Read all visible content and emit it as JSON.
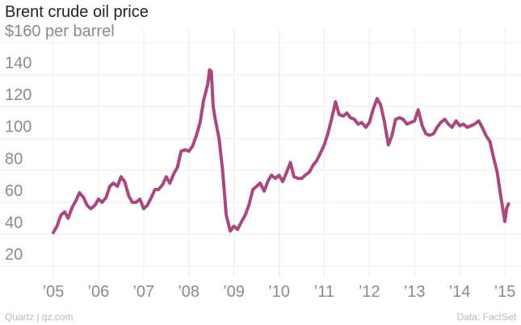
{
  "title": "Brent crude oil price",
  "footer": {
    "source_left": "Quartz | qz.com",
    "source_right": "Data: FactSet"
  },
  "colors": {
    "line": "#a8487f",
    "grid": "#ececec",
    "tick_text": "#8a8a8a"
  },
  "chart_data": {
    "type": "line",
    "title": "Brent crude oil price",
    "xlabel": "",
    "ylabel": "",
    "xlim": [
      2005,
      2015.3
    ],
    "ylim": [
      20,
      160
    ],
    "grid": true,
    "y_ticks": [
      {
        "value": 160,
        "label": "$160 per barrel"
      },
      {
        "value": 140,
        "label": "140"
      },
      {
        "value": 120,
        "label": "120"
      },
      {
        "value": 100,
        "label": "100"
      },
      {
        "value": 80,
        "label": "80"
      },
      {
        "value": 60,
        "label": "60"
      },
      {
        "value": 40,
        "label": "40"
      },
      {
        "value": 20,
        "label": "20"
      }
    ],
    "x_ticks": [
      {
        "value": 2005,
        "label": "’05"
      },
      {
        "value": 2006,
        "label": "’06"
      },
      {
        "value": 2007,
        "label": "’07"
      },
      {
        "value": 2008,
        "label": "’08"
      },
      {
        "value": 2009,
        "label": "’09"
      },
      {
        "value": 2010,
        "label": "’10"
      },
      {
        "value": 2011,
        "label": "’11"
      },
      {
        "value": 2012,
        "label": "’12"
      },
      {
        "value": 2013,
        "label": "’13"
      },
      {
        "value": 2014,
        "label": "’14"
      },
      {
        "value": 2015,
        "label": "’15"
      }
    ],
    "series": [
      {
        "x": [
          2005.0,
          2005.08,
          2005.17,
          2005.25,
          2005.33,
          2005.42,
          2005.5,
          2005.58,
          2005.67,
          2005.75,
          2005.83,
          2005.92,
          2006.0,
          2006.08,
          2006.17,
          2006.25,
          2006.33,
          2006.42,
          2006.5,
          2006.58,
          2006.67,
          2006.75,
          2006.83,
          2006.92,
          2007.0,
          2007.08,
          2007.17,
          2007.25,
          2007.33,
          2007.42,
          2007.5,
          2007.58,
          2007.67,
          2007.75,
          2007.83,
          2007.92,
          2008.0,
          2008.08,
          2008.17,
          2008.25,
          2008.33,
          2008.42,
          2008.46,
          2008.5,
          2008.54,
          2008.58,
          2008.67,
          2008.75,
          2008.83,
          2008.92,
          2009.0,
          2009.08,
          2009.17,
          2009.25,
          2009.33,
          2009.42,
          2009.5,
          2009.58,
          2009.67,
          2009.75,
          2009.83,
          2009.92,
          2010.0,
          2010.08,
          2010.17,
          2010.25,
          2010.33,
          2010.42,
          2010.5,
          2010.58,
          2010.67,
          2010.75,
          2010.83,
          2010.92,
          2011.0,
          2011.08,
          2011.17,
          2011.25,
          2011.33,
          2011.42,
          2011.5,
          2011.58,
          2011.67,
          2011.75,
          2011.83,
          2011.92,
          2012.0,
          2012.08,
          2012.17,
          2012.25,
          2012.33,
          2012.42,
          2012.5,
          2012.58,
          2012.67,
          2012.75,
          2012.83,
          2012.92,
          2013.0,
          2013.08,
          2013.17,
          2013.25,
          2013.33,
          2013.42,
          2013.5,
          2013.58,
          2013.67,
          2013.75,
          2013.83,
          2013.92,
          2014.0,
          2014.08,
          2014.17,
          2014.25,
          2014.33,
          2014.42,
          2014.5,
          2014.58,
          2014.67,
          2014.75,
          2014.83,
          2014.92,
          2015.0,
          2015.04,
          2015.08
        ],
        "values": [
          41,
          45,
          52,
          54,
          50,
          57,
          61,
          66,
          63,
          58,
          56,
          58,
          62,
          60,
          63,
          70,
          72,
          70,
          76,
          73,
          64,
          60,
          60,
          62,
          56,
          58,
          63,
          68,
          68,
          71,
          76,
          72,
          78,
          82,
          92,
          93,
          92,
          95,
          102,
          110,
          124,
          134,
          143,
          142,
          120,
          113,
          100,
          80,
          52,
          42,
          45,
          43,
          48,
          52,
          58,
          68,
          70,
          72,
          67,
          73,
          77,
          75,
          77,
          73,
          79,
          85,
          76,
          75,
          75,
          77,
          79,
          83,
          86,
          91,
          96,
          103,
          113,
          123,
          115,
          114,
          116,
          113,
          112,
          109,
          110,
          107,
          110,
          118,
          125,
          121,
          111,
          96,
          102,
          112,
          113,
          112,
          109,
          110,
          111,
          118,
          108,
          103,
          102,
          103,
          107,
          110,
          112,
          109,
          107,
          111,
          108,
          109,
          107,
          108,
          109,
          111,
          107,
          102,
          98,
          88,
          79,
          62,
          48,
          56,
          59
        ]
      }
    ]
  }
}
